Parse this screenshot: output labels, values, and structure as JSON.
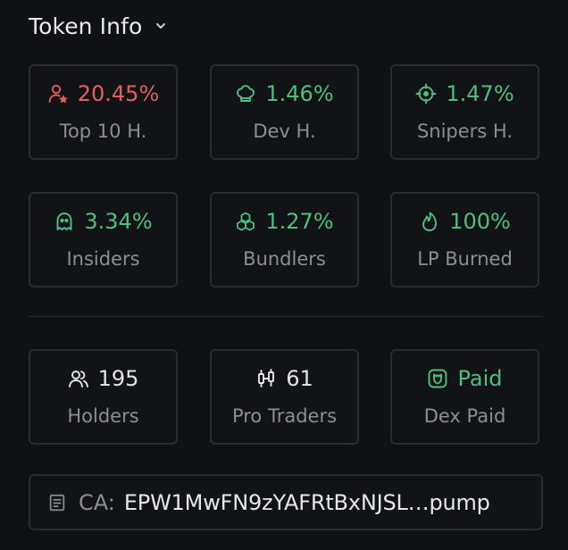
{
  "header": {
    "title": "Token Info",
    "chevron_icon": "chevron-down-icon"
  },
  "stats_row1": [
    {
      "value": "20.45%",
      "label": "Top 10 H.",
      "icon": "user-star-icon",
      "color": "#e0605f"
    },
    {
      "value": "1.46%",
      "label": "Dev H.",
      "icon": "chef-hat-icon",
      "color": "#4fbf80"
    },
    {
      "value": "1.47%",
      "label": "Snipers H.",
      "icon": "crosshair-icon",
      "color": "#4fbf80"
    }
  ],
  "stats_row2": [
    {
      "value": "3.34%",
      "label": "Insiders",
      "icon": "ghost-icon",
      "color": "#4fbf80"
    },
    {
      "value": "1.27%",
      "label": "Bundlers",
      "icon": "cubes-icon",
      "color": "#4fbf80"
    },
    {
      "value": "100%",
      "label": "LP Burned",
      "icon": "flame-icon",
      "color": "#4fbf80"
    }
  ],
  "stats_row3": [
    {
      "value": "195",
      "label": "Holders",
      "icon": "users-icon",
      "color": "#e3e4e7"
    },
    {
      "value": "61",
      "label": "Pro Traders",
      "icon": "candlestick-icon",
      "color": "#e3e4e7"
    },
    {
      "value": "Paid",
      "label": "Dex Paid",
      "icon": "dex-badge-icon",
      "color": "#4fbf80"
    }
  ],
  "contract": {
    "label": "CA:",
    "value": "EPW1MwFN9zYAFRtBxNJSL…pump",
    "icon": "document-icon"
  }
}
